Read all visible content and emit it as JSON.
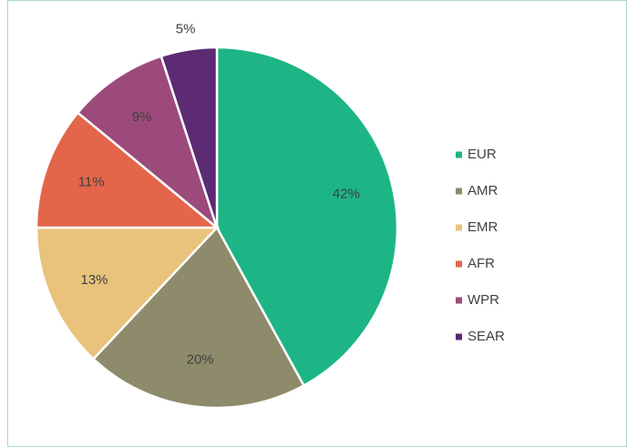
{
  "chart_data": {
    "type": "pie",
    "categories": [
      "EUR",
      "AMR",
      "EMR",
      "AFR",
      "WPR",
      "SEAR"
    ],
    "values": [
      42,
      20,
      13,
      11,
      9,
      5
    ],
    "value_labels": [
      "42%",
      "20%",
      "13%",
      "11%",
      "9%",
      "5%"
    ],
    "colors": [
      "#1db585",
      "#8e8b6c",
      "#e9c27c",
      "#e3654a",
      "#9c4a7b",
      "#5c2b74"
    ],
    "legend": "right"
  }
}
